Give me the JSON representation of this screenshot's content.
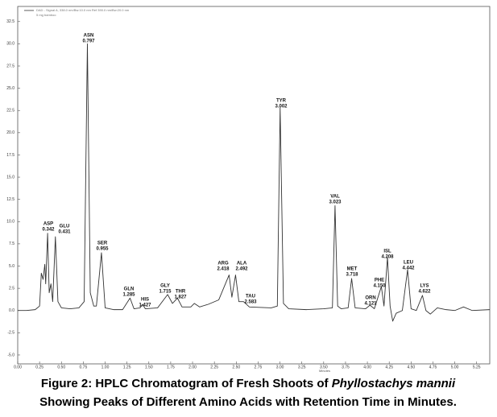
{
  "chart_data": {
    "type": "line",
    "xlabel": "Minutes",
    "legend_note": "5 mg bamboo",
    "series": [
      {
        "name": "DAD - Signal A, 338.0 nm/Bw:10.0 nm Ref 390.0 nm/Bw:20.0 nm",
        "color": "#333333",
        "x": [
          0,
          0.1,
          0.2,
          0.25,
          0.27,
          0.29,
          0.31,
          0.32,
          0.342,
          0.36,
          0.38,
          0.4,
          0.431,
          0.46,
          0.5,
          0.6,
          0.7,
          0.76,
          0.797,
          0.83,
          0.87,
          0.9,
          0.958,
          1.0,
          1.1,
          1.2,
          1.285,
          1.33,
          1.4,
          1.427,
          1.46,
          1.6,
          1.715,
          1.77,
          1.827,
          1.88,
          1.98,
          2.02,
          2.08,
          2.18,
          2.3,
          2.418,
          2.45,
          2.492,
          2.53,
          2.583,
          2.65,
          2.9,
          2.97,
          3.002,
          3.04,
          3.1,
          3.3,
          3.5,
          3.6,
          3.63,
          3.66,
          3.7,
          3.78,
          3.82,
          3.86,
          3.98,
          4.03,
          4.08,
          4.16,
          4.19,
          4.23,
          4.26,
          4.29,
          4.33,
          4.4,
          4.46,
          4.5,
          4.56,
          4.63,
          4.67,
          4.72,
          4.8,
          4.9,
          5.0,
          5.1,
          5.2,
          5.4
        ],
        "values": [
          0,
          0,
          0.1,
          0.5,
          4.2,
          3.5,
          5.2,
          3,
          8.7,
          2,
          3,
          1,
          8.3,
          1,
          0.3,
          0.2,
          0.3,
          1,
          30,
          2,
          0.5,
          0.5,
          6.5,
          0.3,
          0.1,
          0.1,
          1.4,
          0.2,
          0.3,
          0.7,
          0.2,
          0.3,
          1.8,
          0.8,
          1.4,
          0.4,
          0.4,
          0.8,
          0.4,
          0.7,
          1.2,
          4,
          1.5,
          4,
          1,
          1,
          0.4,
          0.3,
          0.5,
          22.8,
          0.8,
          0.2,
          0.1,
          0.2,
          0.3,
          11.8,
          0.5,
          0.2,
          0.3,
          3.6,
          0.3,
          0.2,
          0.6,
          0.2,
          2.7,
          0.5,
          6,
          0.5,
          -1.2,
          -0.3,
          0,
          4.6,
          0.2,
          0,
          1.7,
          0,
          -0.4,
          0.3,
          0.1,
          0,
          0.4,
          0,
          0.1
        ]
      }
    ],
    "annotations": [
      {
        "name": "ASP",
        "time": "0.342"
      },
      {
        "name": "GLU",
        "time": "0.431"
      },
      {
        "name": "ASN",
        "time": "0.797"
      },
      {
        "name": "SER",
        "time": "0.955"
      },
      {
        "name": "GLN",
        "time": "1.285"
      },
      {
        "name": "HIS",
        "time": "1.427"
      },
      {
        "name": "GLY",
        "time": "1.715"
      },
      {
        "name": "THR",
        "time": "1.827"
      },
      {
        "name": "ARG",
        "time": "2.418"
      },
      {
        "name": "ALA",
        "time": "2.492"
      },
      {
        "name": "TAU",
        "time": "2.583"
      },
      {
        "name": "TYR",
        "time": "3.002"
      },
      {
        "name": "VAL",
        "time": "3.023"
      },
      {
        "name": "MET",
        "time": "3.718"
      },
      {
        "name": "ORN",
        "time": "4.121"
      },
      {
        "name": "PHE",
        "time": "4.150"
      },
      {
        "name": "ISL",
        "time": "4.208"
      },
      {
        "name": "LEU",
        "time": "4.442"
      },
      {
        "name": "LYS",
        "time": "4.622"
      }
    ],
    "xlim": [
      0,
      5.4
    ],
    "ylim": [
      -6,
      34.2
    ],
    "xticks": [
      {
        "value": 0,
        "label": "0.00"
      },
      0.25,
      {
        "value": 0.5,
        "label": "0.50"
      },
      0.75,
      {
        "value": 1,
        "label": "1.00"
      },
      1.25,
      {
        "value": 1.5,
        "label": "1.50"
      },
      1.75,
      {
        "value": 2,
        "label": "2.00"
      },
      2.25,
      {
        "value": 2.5,
        "label": "2.50"
      },
      2.75,
      {
        "value": 3,
        "label": "3.00"
      },
      3.25,
      {
        "value": 3.5,
        "label": "3.50"
      },
      3.75,
      {
        "value": 4,
        "label": "4.00"
      },
      4.25,
      {
        "value": 4.5,
        "label": "4.50"
      },
      4.75,
      {
        "value": 5,
        "label": "5.00"
      },
      5.25
    ],
    "yticks": [
      {
        "value": -5,
        "label": "-5.0"
      },
      -2.5,
      {
        "value": 0,
        "label": "0.0"
      },
      2.5,
      {
        "value": 5,
        "label": "5.0"
      },
      7.5,
      {
        "value": 10,
        "label": "10.0"
      },
      12.5,
      {
        "value": 15,
        "label": "15.0"
      },
      17.5,
      {
        "value": 20,
        "label": "20.0"
      },
      22.5,
      {
        "value": 25,
        "label": "25.0"
      },
      27.5,
      {
        "value": 30,
        "label": "30.0"
      },
      32.5
    ],
    "grid": false,
    "caption": {
      "before": "Figure 2: HPLC Chromatogram of Fresh Shoots of ",
      "species": "Phyllostachys mannii",
      "after": "Showing Peaks of Different Amino Acids with Retention Time in Minutes."
    }
  }
}
